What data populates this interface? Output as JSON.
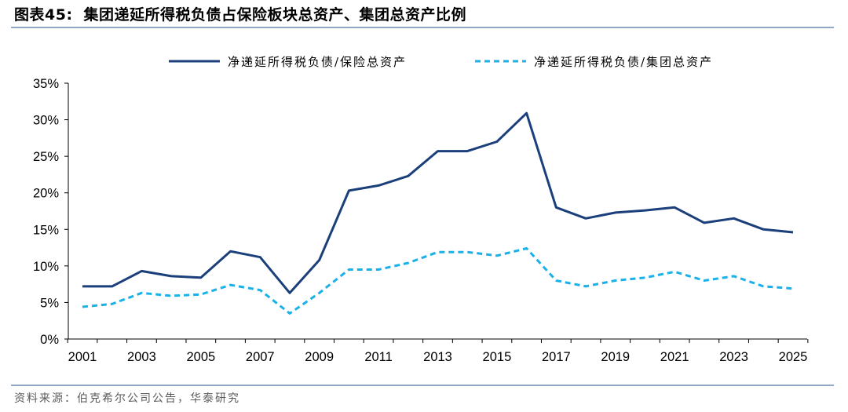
{
  "figure": {
    "number": "图表45:",
    "title": "集团递延所得税负债占保险板块总资产、集团总资产比例",
    "source": "资料来源：伯克希尔公司公告，华泰研究"
  },
  "colors": {
    "series1": "#1b3f7a",
    "series2": "#1ab0e8",
    "axis": "#000000",
    "rule": "#8fa9c2"
  },
  "chart_data": {
    "type": "line",
    "x": [
      2001,
      2002,
      2003,
      2004,
      2005,
      2006,
      2007,
      2008,
      2009,
      2010,
      2011,
      2012,
      2013,
      2014,
      2015,
      2016,
      2017,
      2018,
      2019,
      2020,
      2021,
      2022,
      2023,
      2024,
      2025
    ],
    "x_tick_labels": [
      "2001",
      "2003",
      "2005",
      "2007",
      "2009",
      "2011",
      "2013",
      "2015",
      "2017",
      "2019",
      "2021",
      "2023",
      "2025"
    ],
    "y_tick_labels": [
      "0%",
      "5%",
      "10%",
      "15%",
      "20%",
      "25%",
      "30%",
      "35%"
    ],
    "ylim": [
      0,
      35
    ],
    "y_unit": "%",
    "grid": false,
    "legend_position": "top",
    "series": [
      {
        "name": "净递延所得税负债/保险总资产",
        "style": "solid",
        "values": [
          7.2,
          7.2,
          9.3,
          8.6,
          8.4,
          12.0,
          11.2,
          6.3,
          10.8,
          20.3,
          21.0,
          22.3,
          25.7,
          25.7,
          27.0,
          30.9,
          18.0,
          16.5,
          17.3,
          17.6,
          18.0,
          15.9,
          16.5,
          15.0,
          14.6
        ]
      },
      {
        "name": "净递延所得税负债/集团总资产",
        "style": "dashed",
        "values": [
          4.4,
          4.8,
          6.3,
          5.9,
          6.1,
          7.4,
          6.7,
          3.5,
          6.3,
          9.5,
          9.5,
          10.4,
          11.9,
          11.9,
          11.4,
          12.4,
          8.0,
          7.2,
          8.0,
          8.4,
          9.2,
          8.0,
          8.6,
          7.2,
          6.9
        ]
      }
    ]
  }
}
